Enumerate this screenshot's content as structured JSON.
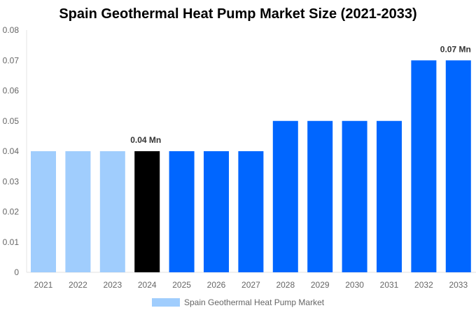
{
  "chart_data": {
    "type": "bar",
    "title": "Spain Geothermal Heat Pump Market Size (2021-2033)",
    "categories": [
      "2021",
      "2022",
      "2023",
      "2024",
      "2025",
      "2026",
      "2027",
      "2028",
      "2029",
      "2030",
      "2031",
      "2032",
      "2033"
    ],
    "values": [
      0.04,
      0.04,
      0.04,
      0.04,
      0.04,
      0.04,
      0.04,
      0.05,
      0.05,
      0.05,
      0.05,
      0.07,
      0.07
    ],
    "bar_colors": [
      "#a0cdfd",
      "#a0cdfd",
      "#a0cdfd",
      "#000000",
      "#0066ff",
      "#0066ff",
      "#0066ff",
      "#0066ff",
      "#0066ff",
      "#0066ff",
      "#0066ff",
      "#0066ff",
      "#0066ff"
    ],
    "ylim": [
      0,
      0.08
    ],
    "yticks": [
      "0",
      "0.01",
      "0.02",
      "0.03",
      "0.04",
      "0.05",
      "0.06",
      "0.07",
      "0.08"
    ],
    "data_labels": [
      {
        "index": 3,
        "text": "0.04 Mn"
      },
      {
        "index": 12,
        "text": "0.07 Mn"
      }
    ],
    "legend": {
      "label": "Spain Geothermal Heat Pump Market",
      "color": "#a0cdfd",
      "position": "bottom"
    },
    "grid": false
  }
}
